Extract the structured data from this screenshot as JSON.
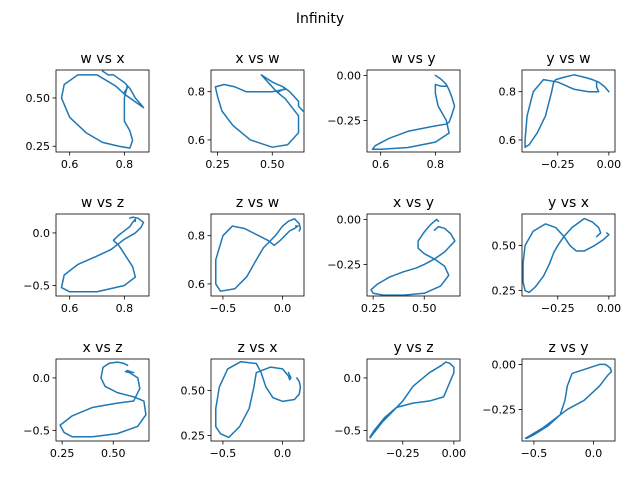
{
  "figure": {
    "title": "Infinity"
  },
  "colors": {
    "series": "#1f77b4",
    "axes": "#000000"
  },
  "chart_data": [
    {
      "type": "line",
      "title": "w vs x",
      "xlim": [
        0.55,
        0.89
      ],
      "ylim": [
        0.22,
        0.645
      ],
      "xticks": [
        0.6,
        0.8
      ],
      "xtick_labels": [
        "0.6",
        "0.8"
      ],
      "yticks": [
        0.25,
        0.5
      ],
      "ytick_labels": [
        "0.25",
        "0.50"
      ],
      "x": [
        0.72,
        0.74,
        0.76,
        0.78,
        0.8,
        0.82,
        0.84,
        0.87,
        0.84,
        0.8,
        0.77,
        0.7,
        0.63,
        0.58,
        0.57,
        0.6,
        0.66,
        0.72,
        0.78,
        0.82,
        0.83,
        0.82,
        0.8,
        0.8,
        0.81,
        0.81,
        0.8
      ],
      "y": [
        0.64,
        0.62,
        0.62,
        0.6,
        0.58,
        0.55,
        0.5,
        0.45,
        0.48,
        0.52,
        0.56,
        0.62,
        0.62,
        0.57,
        0.5,
        0.4,
        0.32,
        0.27,
        0.25,
        0.24,
        0.28,
        0.33,
        0.38,
        0.5,
        0.56,
        0.55,
        0.53
      ]
    },
    {
      "type": "line",
      "title": "x vs w",
      "xlim": [
        0.22,
        0.645
      ],
      "ylim": [
        0.55,
        0.89
      ],
      "xticks": [
        0.25,
        0.5
      ],
      "xtick_labels": [
        "0.25",
        "0.50"
      ],
      "yticks": [
        0.6,
        0.8
      ],
      "ytick_labels": [
        "0.6",
        "0.8"
      ],
      "x": [
        0.64,
        0.62,
        0.62,
        0.6,
        0.58,
        0.55,
        0.5,
        0.45,
        0.48,
        0.52,
        0.56,
        0.62,
        0.62,
        0.57,
        0.5,
        0.4,
        0.32,
        0.27,
        0.25,
        0.24,
        0.28,
        0.33,
        0.38,
        0.5,
        0.56,
        0.55,
        0.53
      ],
      "y": [
        0.72,
        0.74,
        0.76,
        0.78,
        0.8,
        0.82,
        0.84,
        0.87,
        0.84,
        0.8,
        0.77,
        0.7,
        0.63,
        0.58,
        0.57,
        0.6,
        0.66,
        0.72,
        0.78,
        0.82,
        0.83,
        0.82,
        0.8,
        0.8,
        0.81,
        0.81,
        0.8
      ]
    },
    {
      "type": "line",
      "title": "w vs y",
      "xlim": [
        0.55,
        0.89
      ],
      "ylim": [
        -0.425,
        0.03
      ],
      "xticks": [
        0.6,
        0.8
      ],
      "xtick_labels": [
        "0.6",
        "0.8"
      ],
      "yticks": [
        -0.25,
        0.0
      ],
      "ytick_labels": [
        "−0.25",
        "0.00"
      ],
      "x": [
        0.8,
        0.82,
        0.84,
        0.85,
        0.86,
        0.87,
        0.86,
        0.85,
        0.84,
        0.8,
        0.7,
        0.63,
        0.58,
        0.57,
        0.6,
        0.7,
        0.8,
        0.85,
        0.84,
        0.81,
        0.8,
        0.8,
        0.8,
        0.82,
        0.84
      ],
      "y": [
        0.0,
        -0.02,
        -0.05,
        -0.08,
        -0.12,
        -0.17,
        -0.22,
        -0.26,
        -0.27,
        -0.28,
        -0.31,
        -0.35,
        -0.39,
        -0.41,
        -0.41,
        -0.4,
        -0.37,
        -0.32,
        -0.25,
        -0.17,
        -0.1,
        -0.05,
        -0.05,
        -0.06,
        -0.06
      ]
    },
    {
      "type": "line",
      "title": "y vs w",
      "xlim": [
        -0.425,
        0.03
      ],
      "ylim": [
        0.55,
        0.89
      ],
      "xticks": [
        -0.25,
        0.0
      ],
      "xtick_labels": [
        "−0.25",
        "0.00"
      ],
      "yticks": [
        0.6,
        0.8
      ],
      "ytick_labels": [
        "0.6",
        "0.8"
      ],
      "x": [
        0.0,
        -0.02,
        -0.05,
        -0.08,
        -0.12,
        -0.17,
        -0.22,
        -0.26,
        -0.27,
        -0.28,
        -0.31,
        -0.35,
        -0.39,
        -0.41,
        -0.41,
        -0.4,
        -0.37,
        -0.32,
        -0.25,
        -0.17,
        -0.1,
        -0.05,
        -0.05,
        -0.06,
        -0.06
      ],
      "y": [
        0.8,
        0.82,
        0.84,
        0.85,
        0.86,
        0.87,
        0.86,
        0.85,
        0.84,
        0.8,
        0.7,
        0.63,
        0.58,
        0.57,
        0.6,
        0.7,
        0.8,
        0.85,
        0.84,
        0.81,
        0.8,
        0.8,
        0.8,
        0.82,
        0.84
      ]
    },
    {
      "type": "line",
      "title": "w vs z",
      "xlim": [
        0.55,
        0.89
      ],
      "ylim": [
        -0.6,
        0.18
      ],
      "xticks": [
        0.6,
        0.8
      ],
      "xtick_labels": [
        "0.6",
        "0.8"
      ],
      "yticks": [
        -0.5,
        0.0
      ],
      "ytick_labels": [
        "−0.5",
        "0.0"
      ],
      "x": [
        0.82,
        0.83,
        0.85,
        0.87,
        0.86,
        0.84,
        0.8,
        0.78,
        0.75,
        0.7,
        0.63,
        0.58,
        0.57,
        0.6,
        0.7,
        0.8,
        0.84,
        0.83,
        0.8,
        0.78,
        0.76,
        0.78,
        0.8,
        0.82,
        0.83,
        0.84,
        0.84
      ],
      "y": [
        0.14,
        0.15,
        0.14,
        0.1,
        0.05,
        0.0,
        -0.06,
        -0.1,
        -0.16,
        -0.22,
        -0.3,
        -0.4,
        -0.52,
        -0.56,
        -0.56,
        -0.5,
        -0.42,
        -0.32,
        -0.2,
        -0.12,
        -0.07,
        -0.02,
        0.02,
        0.06,
        0.1,
        0.13,
        0.11
      ]
    },
    {
      "type": "line",
      "title": "z vs w",
      "xlim": [
        -0.6,
        0.18
      ],
      "ylim": [
        0.55,
        0.89
      ],
      "xticks": [
        -0.5,
        0.0
      ],
      "xtick_labels": [
        "−0.5",
        "0.0"
      ],
      "yticks": [
        0.6,
        0.8
      ],
      "ytick_labels": [
        "0.6",
        "0.8"
      ],
      "x": [
        0.14,
        0.15,
        0.14,
        0.1,
        0.05,
        0.0,
        -0.06,
        -0.1,
        -0.16,
        -0.22,
        -0.3,
        -0.4,
        -0.52,
        -0.56,
        -0.56,
        -0.5,
        -0.42,
        -0.32,
        -0.2,
        -0.12,
        -0.07,
        -0.02,
        0.02,
        0.06,
        0.1,
        0.13,
        0.11
      ],
      "y": [
        0.82,
        0.83,
        0.85,
        0.87,
        0.86,
        0.84,
        0.8,
        0.78,
        0.75,
        0.7,
        0.63,
        0.58,
        0.57,
        0.6,
        0.7,
        0.8,
        0.84,
        0.83,
        0.8,
        0.78,
        0.76,
        0.78,
        0.8,
        0.82,
        0.83,
        0.84,
        0.84
      ]
    },
    {
      "type": "line",
      "title": "x vs y",
      "xlim": [
        0.22,
        0.675
      ],
      "ylim": [
        -0.425,
        0.03
      ],
      "xticks": [
        0.25,
        0.5
      ],
      "xtick_labels": [
        "0.25",
        "0.50"
      ],
      "yticks": [
        -0.25,
        0.0
      ],
      "ytick_labels": [
        "−0.25",
        "0.00"
      ],
      "x": [
        0.55,
        0.57,
        0.6,
        0.63,
        0.65,
        0.6,
        0.55,
        0.5,
        0.46,
        0.4,
        0.33,
        0.27,
        0.24,
        0.25,
        0.3,
        0.4,
        0.5,
        0.58,
        0.62,
        0.6,
        0.55,
        0.5,
        0.47,
        0.47,
        0.5,
        0.53,
        0.56,
        0.57
      ],
      "y": [
        -0.06,
        -0.04,
        -0.05,
        -0.08,
        -0.12,
        -0.18,
        -0.22,
        -0.25,
        -0.27,
        -0.29,
        -0.32,
        -0.36,
        -0.39,
        -0.41,
        -0.42,
        -0.42,
        -0.41,
        -0.37,
        -0.31,
        -0.26,
        -0.22,
        -0.19,
        -0.16,
        -0.12,
        -0.07,
        -0.03,
        0.0,
        -0.01
      ]
    },
    {
      "type": "line",
      "title": "y vs x",
      "xlim": [
        -0.425,
        0.03
      ],
      "ylim": [
        0.22,
        0.675
      ],
      "xticks": [
        -0.25,
        0.0
      ],
      "xtick_labels": [
        "−0.25",
        "0.00"
      ],
      "yticks": [
        0.25,
        0.5
      ],
      "ytick_labels": [
        "0.25",
        "0.50"
      ],
      "x": [
        -0.06,
        -0.04,
        -0.05,
        -0.08,
        -0.12,
        -0.18,
        -0.22,
        -0.25,
        -0.27,
        -0.29,
        -0.32,
        -0.36,
        -0.39,
        -0.41,
        -0.42,
        -0.42,
        -0.41,
        -0.37,
        -0.31,
        -0.26,
        -0.22,
        -0.19,
        -0.16,
        -0.12,
        -0.07,
        -0.03,
        0.0,
        -0.01
      ],
      "y": [
        0.55,
        0.57,
        0.6,
        0.63,
        0.65,
        0.6,
        0.55,
        0.5,
        0.46,
        0.4,
        0.33,
        0.27,
        0.24,
        0.25,
        0.3,
        0.4,
        0.5,
        0.58,
        0.62,
        0.6,
        0.55,
        0.5,
        0.47,
        0.47,
        0.5,
        0.53,
        0.56,
        0.57
      ]
    },
    {
      "type": "line",
      "title": "x vs z",
      "xlim": [
        0.22,
        0.675
      ],
      "ylim": [
        -0.6,
        0.18
      ],
      "xticks": [
        0.25,
        0.5
      ],
      "xtick_labels": [
        "0.25",
        "0.50"
      ],
      "yticks": [
        -0.5,
        0.0
      ],
      "ytick_labels": [
        "−0.5",
        "0.0"
      ],
      "x": [
        0.57,
        0.55,
        0.52,
        0.48,
        0.45,
        0.44,
        0.46,
        0.52,
        0.6,
        0.65,
        0.66,
        0.62,
        0.52,
        0.4,
        0.3,
        0.26,
        0.24,
        0.3,
        0.4,
        0.52,
        0.6,
        0.63,
        0.62,
        0.58,
        0.56,
        0.57,
        0.6
      ],
      "y": [
        0.12,
        0.14,
        0.15,
        0.14,
        0.1,
        0.0,
        -0.08,
        -0.14,
        -0.18,
        -0.22,
        -0.35,
        -0.46,
        -0.53,
        -0.56,
        -0.56,
        -0.52,
        -0.45,
        -0.36,
        -0.28,
        -0.24,
        -0.22,
        -0.1,
        0.0,
        0.05,
        0.06,
        0.07,
        0.05
      ]
    },
    {
      "type": "line",
      "title": "z vs x",
      "xlim": [
        -0.6,
        0.18
      ],
      "ylim": [
        0.22,
        0.675
      ],
      "xticks": [
        -0.5,
        0.0
      ],
      "xtick_labels": [
        "−0.5",
        "0.0"
      ],
      "yticks": [
        0.25,
        0.5
      ],
      "ytick_labels": [
        "0.25",
        "0.50"
      ],
      "x": [
        0.12,
        0.14,
        0.15,
        0.14,
        0.1,
        0.0,
        -0.08,
        -0.14,
        -0.18,
        -0.22,
        -0.35,
        -0.46,
        -0.53,
        -0.56,
        -0.56,
        -0.52,
        -0.45,
        -0.36,
        -0.28,
        -0.24,
        -0.22,
        -0.1,
        0.0,
        0.05,
        0.06,
        0.07,
        0.05
      ],
      "y": [
        0.57,
        0.55,
        0.52,
        0.48,
        0.45,
        0.44,
        0.46,
        0.52,
        0.6,
        0.65,
        0.66,
        0.62,
        0.52,
        0.4,
        0.3,
        0.26,
        0.24,
        0.3,
        0.4,
        0.52,
        0.6,
        0.63,
        0.62,
        0.58,
        0.56,
        0.57,
        0.6
      ]
    },
    {
      "type": "line",
      "title": "y vs z",
      "xlim": [
        -0.425,
        0.03
      ],
      "ylim": [
        -0.6,
        0.18
      ],
      "xticks": [
        -0.25,
        0.0
      ],
      "xtick_labels": [
        "−0.25",
        "0.00"
      ],
      "yticks": [
        -0.5,
        0.0
      ],
      "ytick_labels": [
        "−0.5",
        "0.0"
      ],
      "x": [
        -0.41,
        -0.39,
        -0.35,
        -0.3,
        -0.25,
        -0.2,
        -0.12,
        -0.06,
        -0.04,
        -0.02,
        0.0,
        0.0,
        -0.05,
        -0.12,
        -0.2,
        -0.28,
        -0.34,
        -0.39,
        -0.41
      ],
      "y": [
        -0.57,
        -0.52,
        -0.42,
        -0.32,
        -0.22,
        -0.08,
        0.05,
        0.12,
        0.15,
        0.14,
        0.1,
        0.05,
        -0.18,
        -0.22,
        -0.24,
        -0.28,
        -0.38,
        -0.5,
        -0.56
      ]
    },
    {
      "type": "line",
      "title": "z vs y",
      "xlim": [
        -0.6,
        0.18
      ],
      "ylim": [
        -0.425,
        0.03
      ],
      "xticks": [
        -0.5,
        0.0
      ],
      "xtick_labels": [
        "−0.5",
        "0.0"
      ],
      "yticks": [
        -0.25,
        0.0
      ],
      "ytick_labels": [
        "−0.25",
        "0.00"
      ],
      "x": [
        -0.57,
        -0.52,
        -0.42,
        -0.32,
        -0.22,
        -0.08,
        0.05,
        0.12,
        0.15,
        0.14,
        0.1,
        0.05,
        -0.18,
        -0.22,
        -0.24,
        -0.28,
        -0.38,
        -0.5,
        -0.56
      ],
      "y": [
        -0.41,
        -0.39,
        -0.35,
        -0.3,
        -0.25,
        -0.2,
        -0.12,
        -0.06,
        -0.04,
        -0.02,
        0.0,
        0.0,
        -0.05,
        -0.12,
        -0.2,
        -0.28,
        -0.34,
        -0.39,
        -0.41
      ]
    }
  ]
}
